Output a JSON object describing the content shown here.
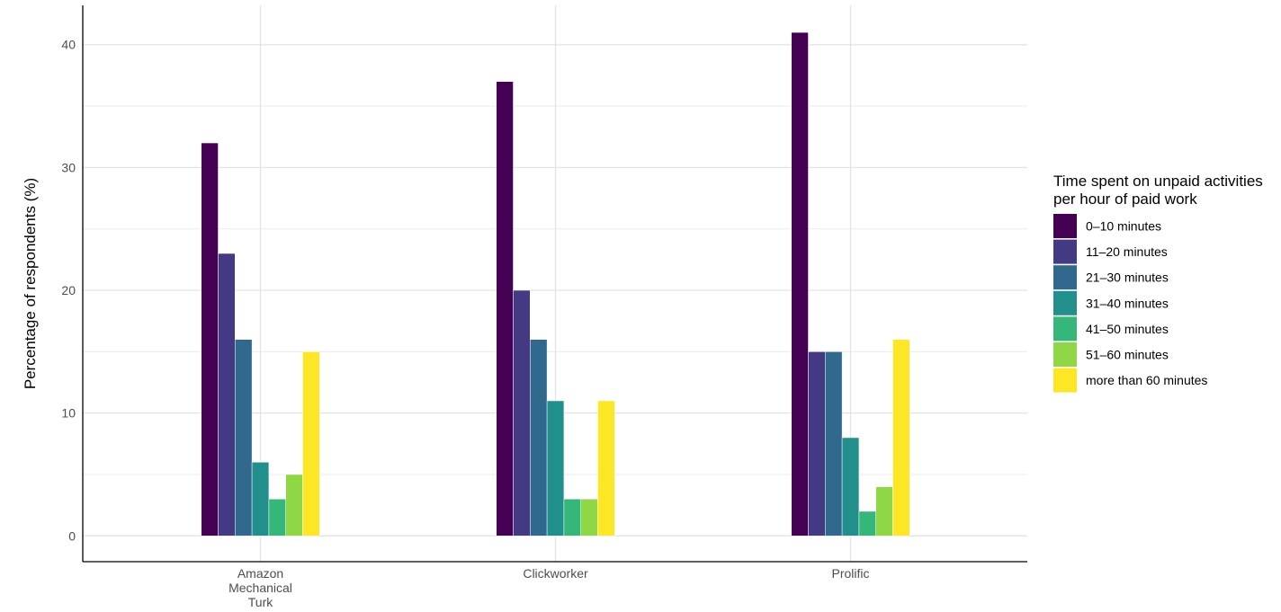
{
  "chart_data": {
    "type": "bar",
    "categories": [
      [
        "Amazon",
        "Mechanical",
        "Turk"
      ],
      [
        "Clickworker"
      ],
      [
        "Prolific"
      ]
    ],
    "ylabel": "Percentage of respondents (%)",
    "xlabel": "",
    "ylim": [
      -2.1,
      43.2
    ],
    "y_ticks": [
      0,
      10,
      20,
      30,
      40
    ],
    "grid": true,
    "legend": {
      "title": [
        "Time spent on unpaid activities",
        "per hour of paid work"
      ],
      "placement": "right"
    },
    "series": [
      {
        "name": "0–10 minutes",
        "color": "#440154",
        "values": [
          32,
          37,
          41
        ]
      },
      {
        "name": "11–20 minutes",
        "color": "#443A83",
        "values": [
          23,
          20,
          15
        ]
      },
      {
        "name": "21–30 minutes",
        "color": "#31688E",
        "values": [
          16,
          16,
          15
        ]
      },
      {
        "name": "31–40 minutes",
        "color": "#21908C",
        "values": [
          6,
          11,
          8
        ]
      },
      {
        "name": "41–50 minutes",
        "color": "#35B779",
        "values": [
          3,
          3,
          2
        ]
      },
      {
        "name": "51–60 minutes",
        "color": "#8FD744",
        "values": [
          5,
          3,
          4
        ]
      },
      {
        "name": "more than 60 minutes",
        "color": "#FDE725",
        "values": [
          15,
          11,
          16
        ]
      }
    ]
  }
}
